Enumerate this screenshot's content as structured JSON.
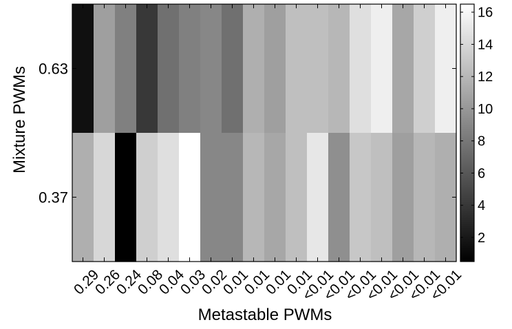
{
  "chart_data": {
    "type": "heatmap",
    "title": "",
    "xlabel": "Metastable PWMs",
    "ylabel": "Mixture PWMs",
    "x_categories": [
      "0.29",
      "0.26",
      "0.24",
      "0.08",
      "0.04",
      "0.03",
      "0.02",
      "0.01",
      "0.01",
      "0.01",
      "0.01",
      "<0.01",
      "<0.01",
      "<0.01",
      "<0.01",
      "<0.01",
      "<0.01",
      "<0.01"
    ],
    "y_categories": [
      "0.63",
      "0.37"
    ],
    "values": [
      [
        1.5,
        10.5,
        8.5,
        4.0,
        7.5,
        8.5,
        9.0,
        7.5,
        11.5,
        10.5,
        12.5,
        12.5,
        12.0,
        14.5,
        15.5,
        11.0,
        13.5,
        15.5
      ],
      [
        11.5,
        14.0,
        0.5,
        13.5,
        14.5,
        16.5,
        9.0,
        9.0,
        12.0,
        11.0,
        12.5,
        15.0,
        9.5,
        13.0,
        12.5,
        10.5,
        12.0,
        11.5
      ]
    ],
    "colorbar": {
      "range": [
        0.5,
        16.5
      ],
      "ticks": [
        2,
        4,
        6,
        8,
        10,
        12,
        14,
        16
      ],
      "colormap": "gray"
    }
  }
}
